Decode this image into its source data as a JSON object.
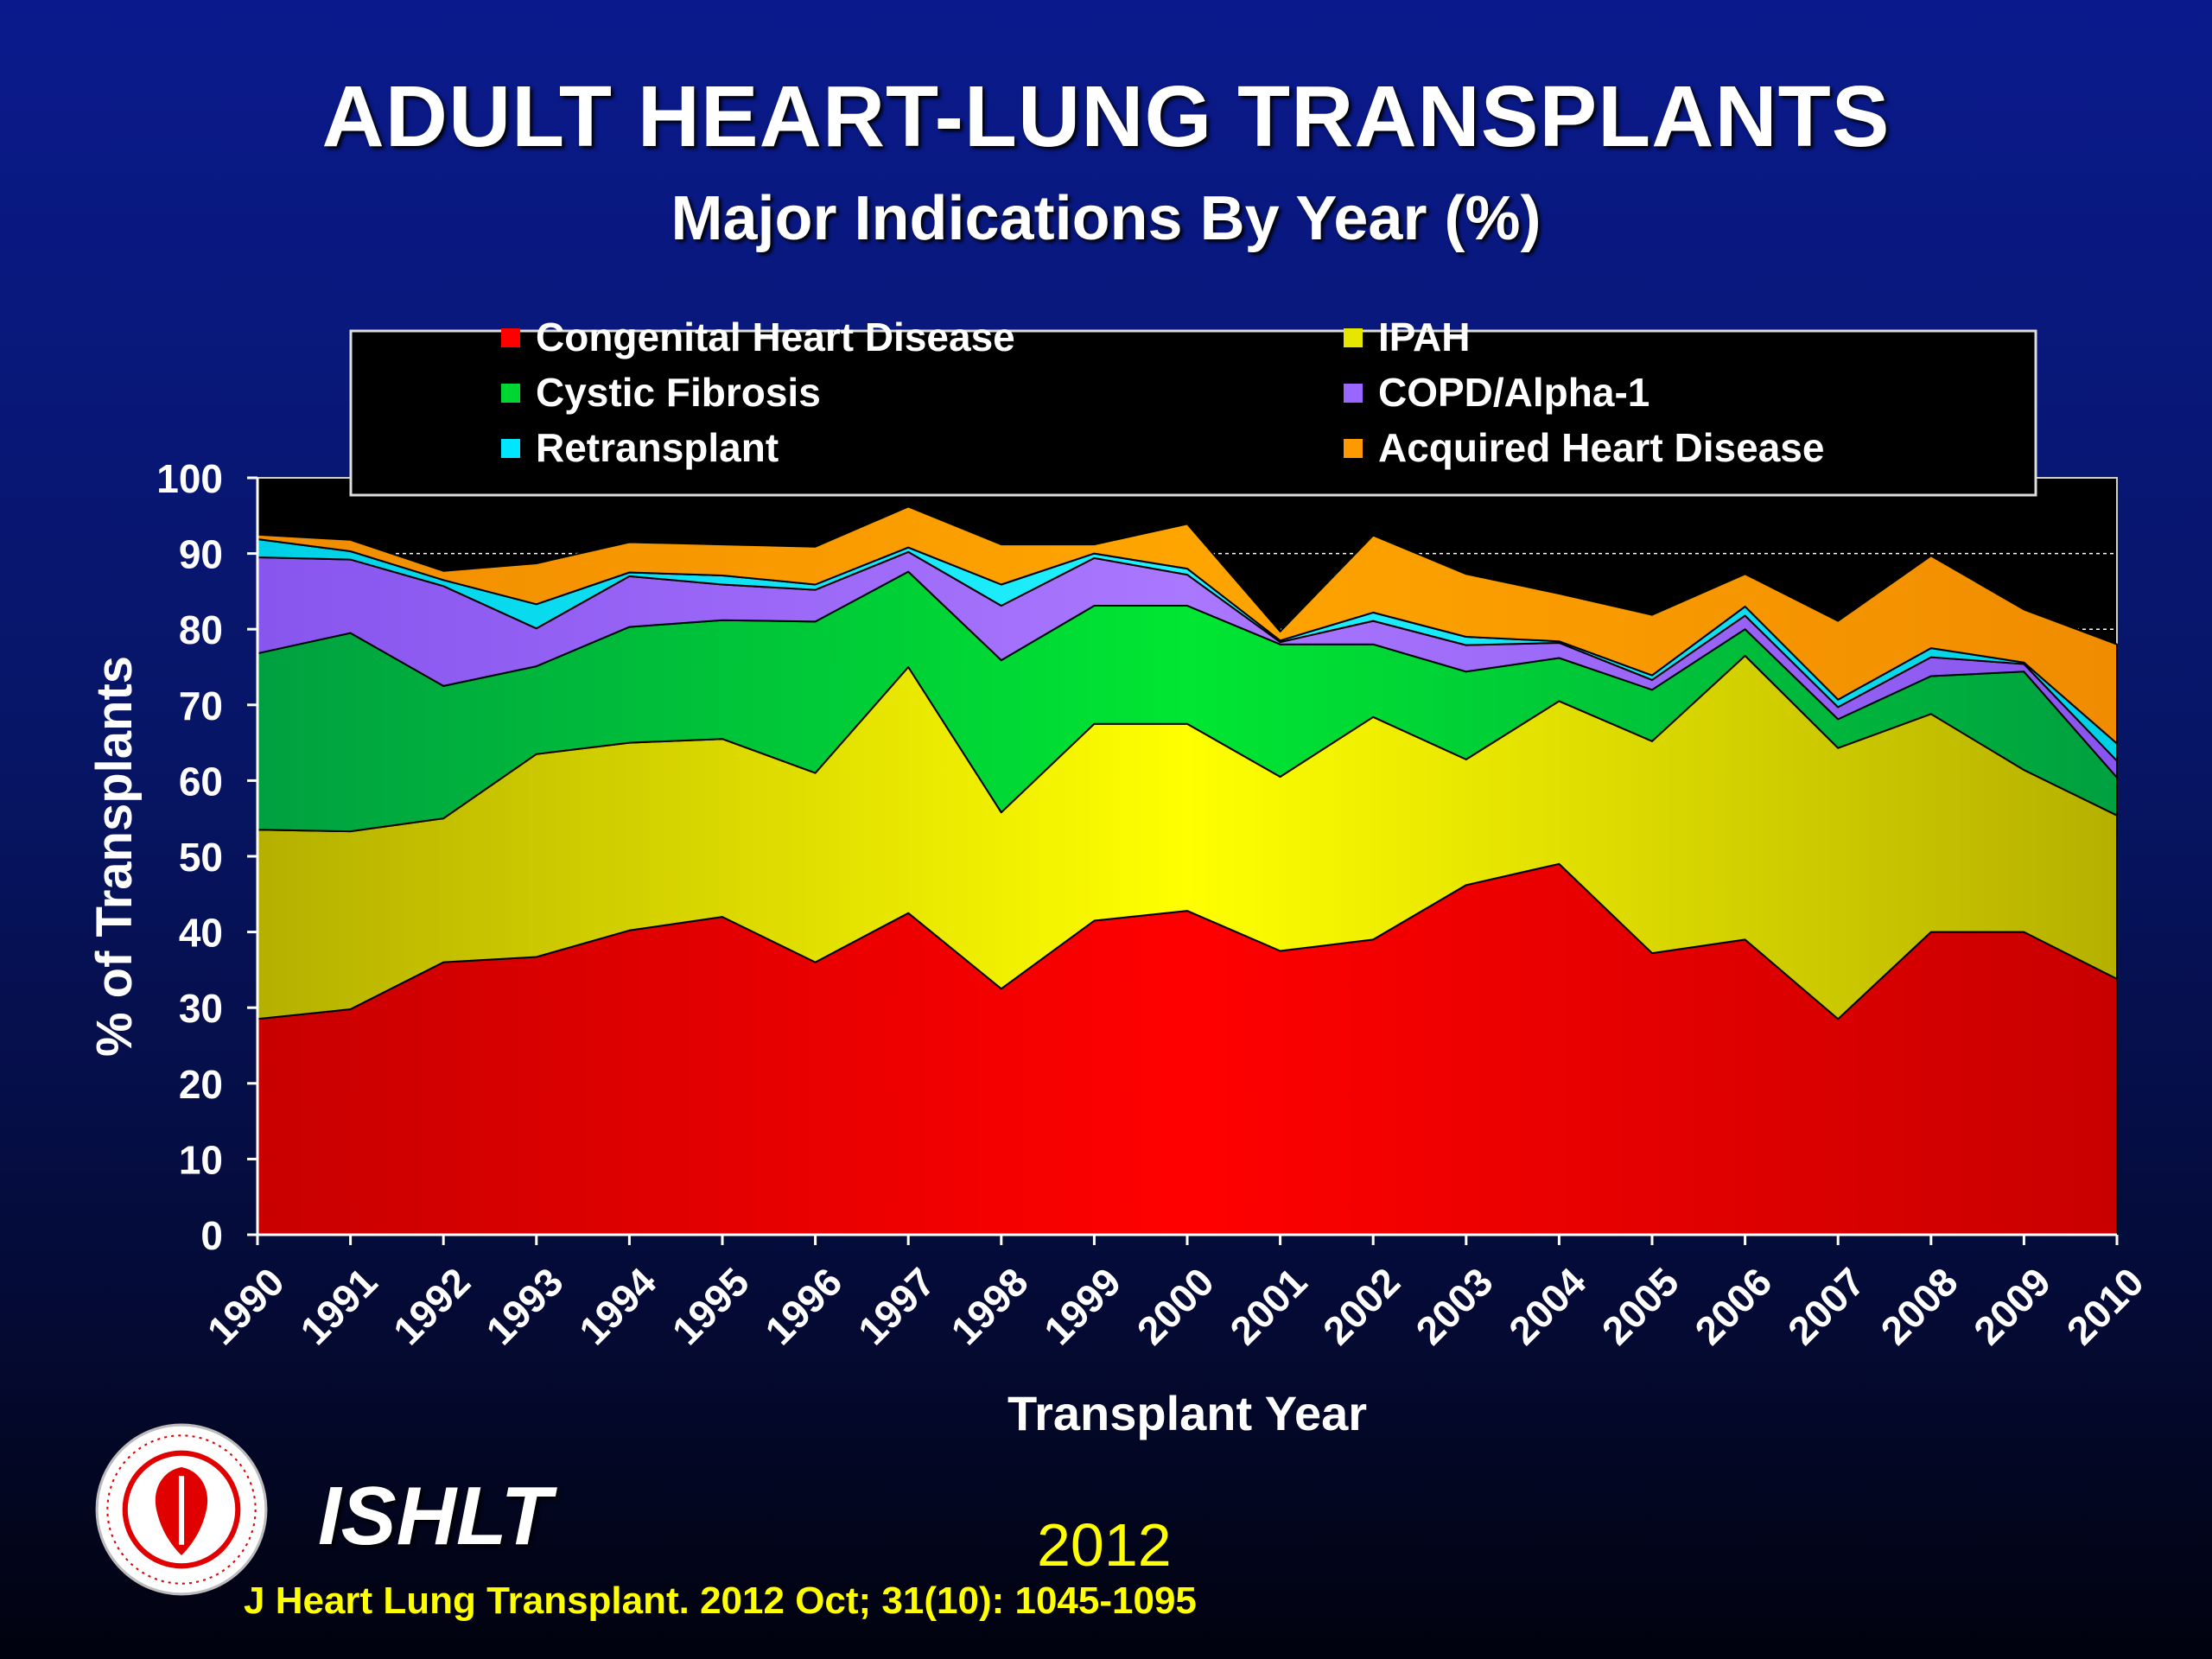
{
  "slide": {
    "title": "ADULT HEART-LUNG TRANSPLANTS",
    "subtitle": "Major Indications By Year (%)",
    "org": "ISHLT",
    "year": "2012",
    "citation": "J Heart Lung Transplant.  2012 Oct; 31(10): 1045-1095",
    "logo_icon": "ishlt-seal-icon"
  },
  "chart_data": {
    "type": "area",
    "stacked": true,
    "xlabel": "Transplant Year",
    "ylabel": "% of Transplants",
    "ylim": [
      0,
      100
    ],
    "yticks": [
      0,
      10,
      20,
      30,
      40,
      50,
      60,
      70,
      80,
      90,
      100
    ],
    "grid": "dashed horizontal gridlines visible above data",
    "legend_position": "top",
    "categories": [
      "1990",
      "1991",
      "1992",
      "1993",
      "1994",
      "1995",
      "1996",
      "1997",
      "1998",
      "1999",
      "2000",
      "2001",
      "2002",
      "2003",
      "2004",
      "2005",
      "2006",
      "2007",
      "2008",
      "2009",
      "2010"
    ],
    "series": [
      {
        "name": "Congenital Heart Disease",
        "color": "#ff0000",
        "values": [
          28.5,
          29.8,
          36,
          36.7,
          40.2,
          42,
          36,
          42.5,
          32.5,
          41.5,
          42.8,
          37.5,
          39,
          46.2,
          49,
          37.2,
          39,
          28.5,
          40,
          40,
          33.8
        ]
      },
      {
        "name": "IPAH",
        "color": "#e6e600",
        "values": [
          25,
          23.5,
          19,
          26.8,
          24.8,
          23.5,
          25,
          32.5,
          23.3,
          26,
          24.7,
          23,
          29.4,
          16.6,
          21.5,
          28,
          37.5,
          35.8,
          28.8,
          21.4,
          21.6
        ]
      },
      {
        "name": "Cystic Fibrosis",
        "color": "#00d632",
        "values": [
          23.3,
          26.2,
          17.5,
          11.6,
          15.3,
          15.7,
          20,
          12.6,
          20.1,
          15.6,
          15.6,
          17.5,
          9.6,
          11.6,
          5.7,
          6.8,
          3.5,
          3.8,
          5,
          13,
          5
        ]
      },
      {
        "name": "COPD/Alpha-1",
        "color": "#9966ff",
        "values": [
          12.7,
          9.7,
          13.2,
          5,
          6.7,
          4.7,
          4.2,
          2.6,
          7.2,
          6.3,
          4.1,
          0.3,
          3.1,
          3.5,
          2,
          1.3,
          1.8,
          1.6,
          2.5,
          1,
          2.2
        ]
      },
      {
        "name": "Retransplant",
        "color": "#00e6ff",
        "values": [
          2.4,
          1.1,
          0.8,
          3.2,
          0.5,
          1.2,
          0.7,
          0.6,
          2.8,
          0.6,
          0.8,
          0.2,
          1.1,
          1.1,
          0.2,
          0.6,
          1.2,
          1,
          1.2,
          0.2,
          2.3
        ]
      },
      {
        "name": "Acquired Heart Disease",
        "color": "#ff9900",
        "values": [
          0.6,
          1.5,
          1.2,
          5.4,
          4,
          4.1,
          5,
          5.4,
          5.3,
          1.2,
          5.9,
          1.2,
          10.2,
          8.3,
          6.3,
          8,
          4.3,
          10.4,
          12.2,
          7,
          13.1
        ]
      }
    ]
  }
}
